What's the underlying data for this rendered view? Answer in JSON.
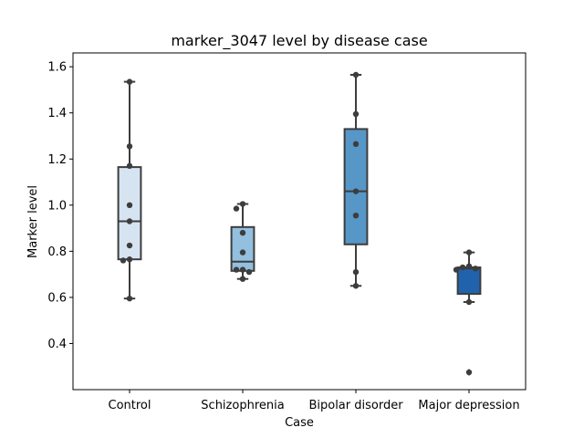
{
  "chart_data": {
    "type": "box",
    "title": "marker_3047 level by disease case",
    "xlabel": "Case",
    "ylabel": "Marker level",
    "categories": [
      "Control",
      "Schizophrenia",
      "Bipolar disorder",
      "Major depression"
    ],
    "ylim": [
      0.2,
      1.66
    ],
    "yticks": [
      0.4,
      0.6,
      0.8,
      1.0,
      1.2,
      1.4,
      1.6
    ],
    "ytick_labels": [
      "0.4",
      "0.6",
      "0.8",
      "1.0",
      "1.2",
      "1.4",
      "1.6"
    ],
    "grid": false,
    "boxes": [
      {
        "category": "Control",
        "q1": 0.765,
        "median": 0.93,
        "q3": 1.165,
        "whisker_low": 0.595,
        "whisker_high": 1.535,
        "outliers": [],
        "color": "#d6e4f2"
      },
      {
        "category": "Schizophrenia",
        "q1": 0.715,
        "median": 0.755,
        "q3": 0.905,
        "whisker_low": 0.68,
        "whisker_high": 1.005,
        "outliers": [],
        "color": "#92c0de"
      },
      {
        "category": "Bipolar disorder",
        "q1": 0.83,
        "median": 1.06,
        "q3": 1.33,
        "whisker_low": 0.65,
        "whisker_high": 1.565,
        "outliers": [],
        "color": "#5697c8"
      },
      {
        "category": "Major depression",
        "q1": 0.615,
        "median": 0.725,
        "q3": 0.73,
        "whisker_low": 0.58,
        "whisker_high": 0.795,
        "outliers": [
          0.275
        ],
        "color": "#2063ac"
      }
    ],
    "points": [
      {
        "category": "Control",
        "values": [
          1.535,
          1.255,
          1.17,
          1.0,
          0.93,
          0.825,
          0.765,
          0.76,
          0.595
        ]
      },
      {
        "category": "Schizophrenia",
        "values": [
          1.005,
          0.985,
          0.88,
          0.795,
          0.72,
          0.72,
          0.71,
          0.68
        ]
      },
      {
        "category": "Bipolar disorder",
        "values": [
          1.565,
          1.395,
          1.265,
          1.06,
          0.955,
          0.71,
          0.65
        ]
      },
      {
        "category": "Major depression",
        "values": [
          0.795,
          0.735,
          0.73,
          0.725,
          0.72,
          0.58,
          0.275
        ]
      }
    ],
    "colors": {
      "line": "#3d3d3d",
      "point": "#3d3d3d"
    }
  }
}
